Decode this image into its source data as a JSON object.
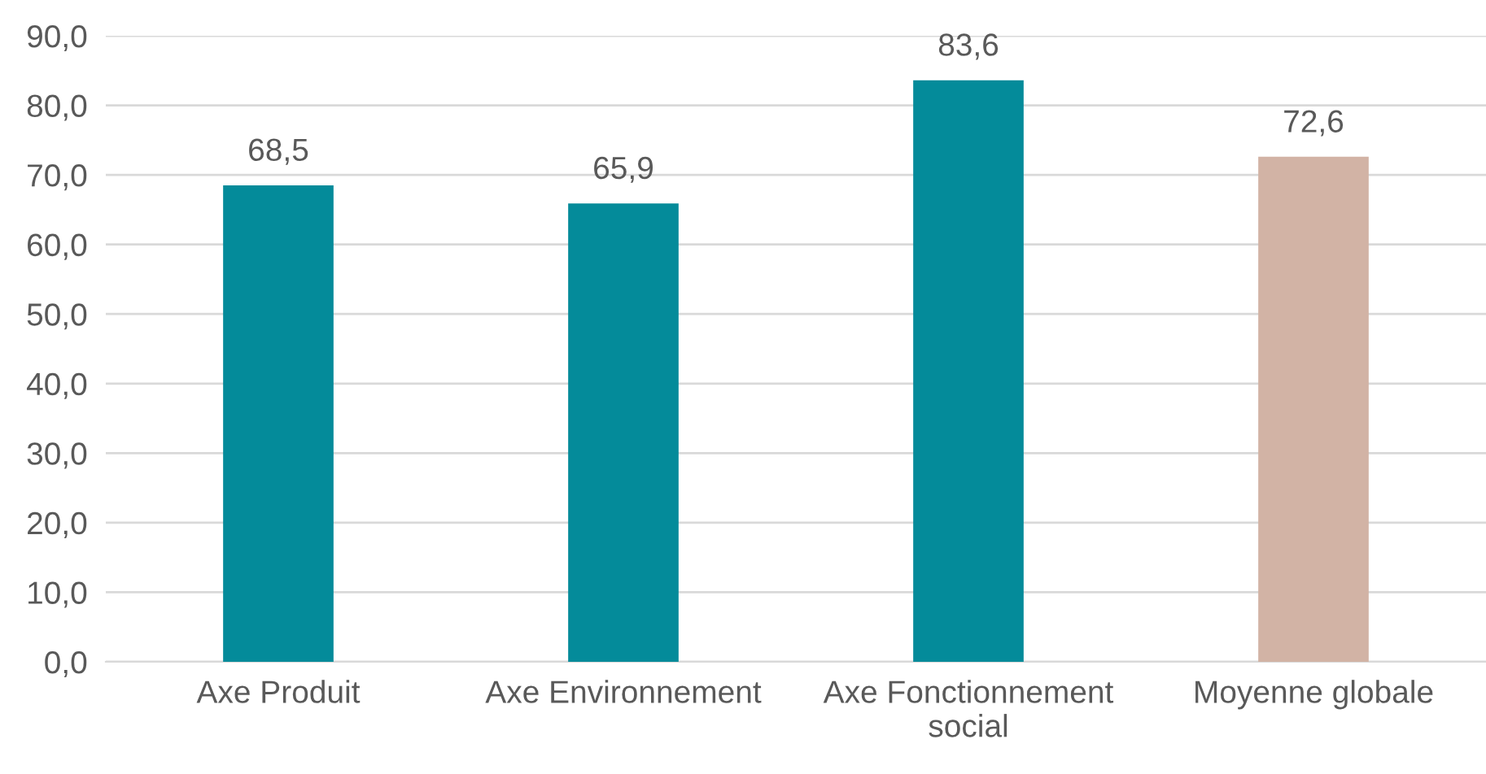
{
  "chart_data": {
    "type": "bar",
    "categories": [
      "Axe Produit",
      "Axe Environnement",
      "Axe Fonctionnement\nsocial",
      "Moyenne globale"
    ],
    "values": [
      68.5,
      65.9,
      83.6,
      72.6
    ],
    "colors": [
      "#048b9a",
      "#048b9a",
      "#048b9a",
      "#d2b3a5"
    ],
    "value_labels": [
      "68,5",
      "65,9",
      "83,6",
      "72,6"
    ],
    "ylim": [
      0,
      90
    ],
    "yticks": [
      {
        "value": 0,
        "label": "0,0"
      },
      {
        "value": 10,
        "label": "10,0"
      },
      {
        "value": 20,
        "label": "20,0"
      },
      {
        "value": 30,
        "label": "30,0"
      },
      {
        "value": 40,
        "label": "40,0"
      },
      {
        "value": 50,
        "label": "50,0"
      },
      {
        "value": 60,
        "label": "60,0"
      },
      {
        "value": 70,
        "label": "70,0"
      },
      {
        "value": 80,
        "label": "80,0"
      },
      {
        "value": 90,
        "label": "90,0"
      }
    ],
    "grid": "y"
  }
}
